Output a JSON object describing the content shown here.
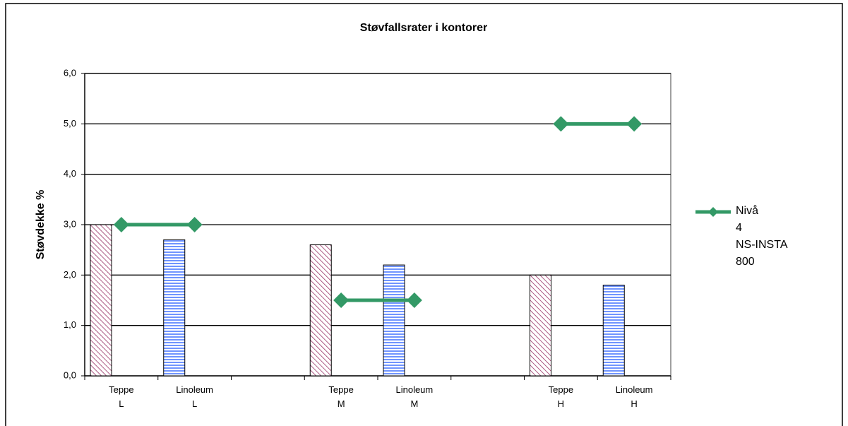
{
  "chart_data": {
    "type": "bar",
    "title": "Støvfallsrater i kontorer",
    "y_label": "Støvdekke %",
    "categories": [
      "Teppe L",
      "Linoleum L",
      null,
      "Teppe M",
      "Linoleum M",
      null,
      "Teppe H",
      "Linoleum H"
    ],
    "ylim": [
      0,
      6
    ],
    "yticks": [
      {
        "value": 0,
        "label": "0,0"
      },
      {
        "value": 1,
        "label": "1,0"
      },
      {
        "value": 2,
        "label": "2,0"
      },
      {
        "value": 3,
        "label": "3,0"
      },
      {
        "value": 4,
        "label": "4,0"
      },
      {
        "value": 5,
        "label": "5,0"
      },
      {
        "value": 6,
        "label": "6,0"
      }
    ],
    "grid": true,
    "legend": "right",
    "bars": {
      "values": [
        3.0,
        2.7,
        null,
        2.6,
        2.2,
        null,
        2.0,
        1.8
      ],
      "colors": [
        "#993366",
        "#3366ff",
        null,
        "#993366",
        "#3366ff",
        null,
        "#993366",
        "#3366ff"
      ]
    },
    "series": [
      {
        "name": "Nivå 4 NS-INSTA 800",
        "type": "line",
        "color": "#339966",
        "values": [
          3.0,
          3.0,
          null,
          1.5,
          1.5,
          null,
          5.0,
          5.0
        ]
      }
    ]
  }
}
